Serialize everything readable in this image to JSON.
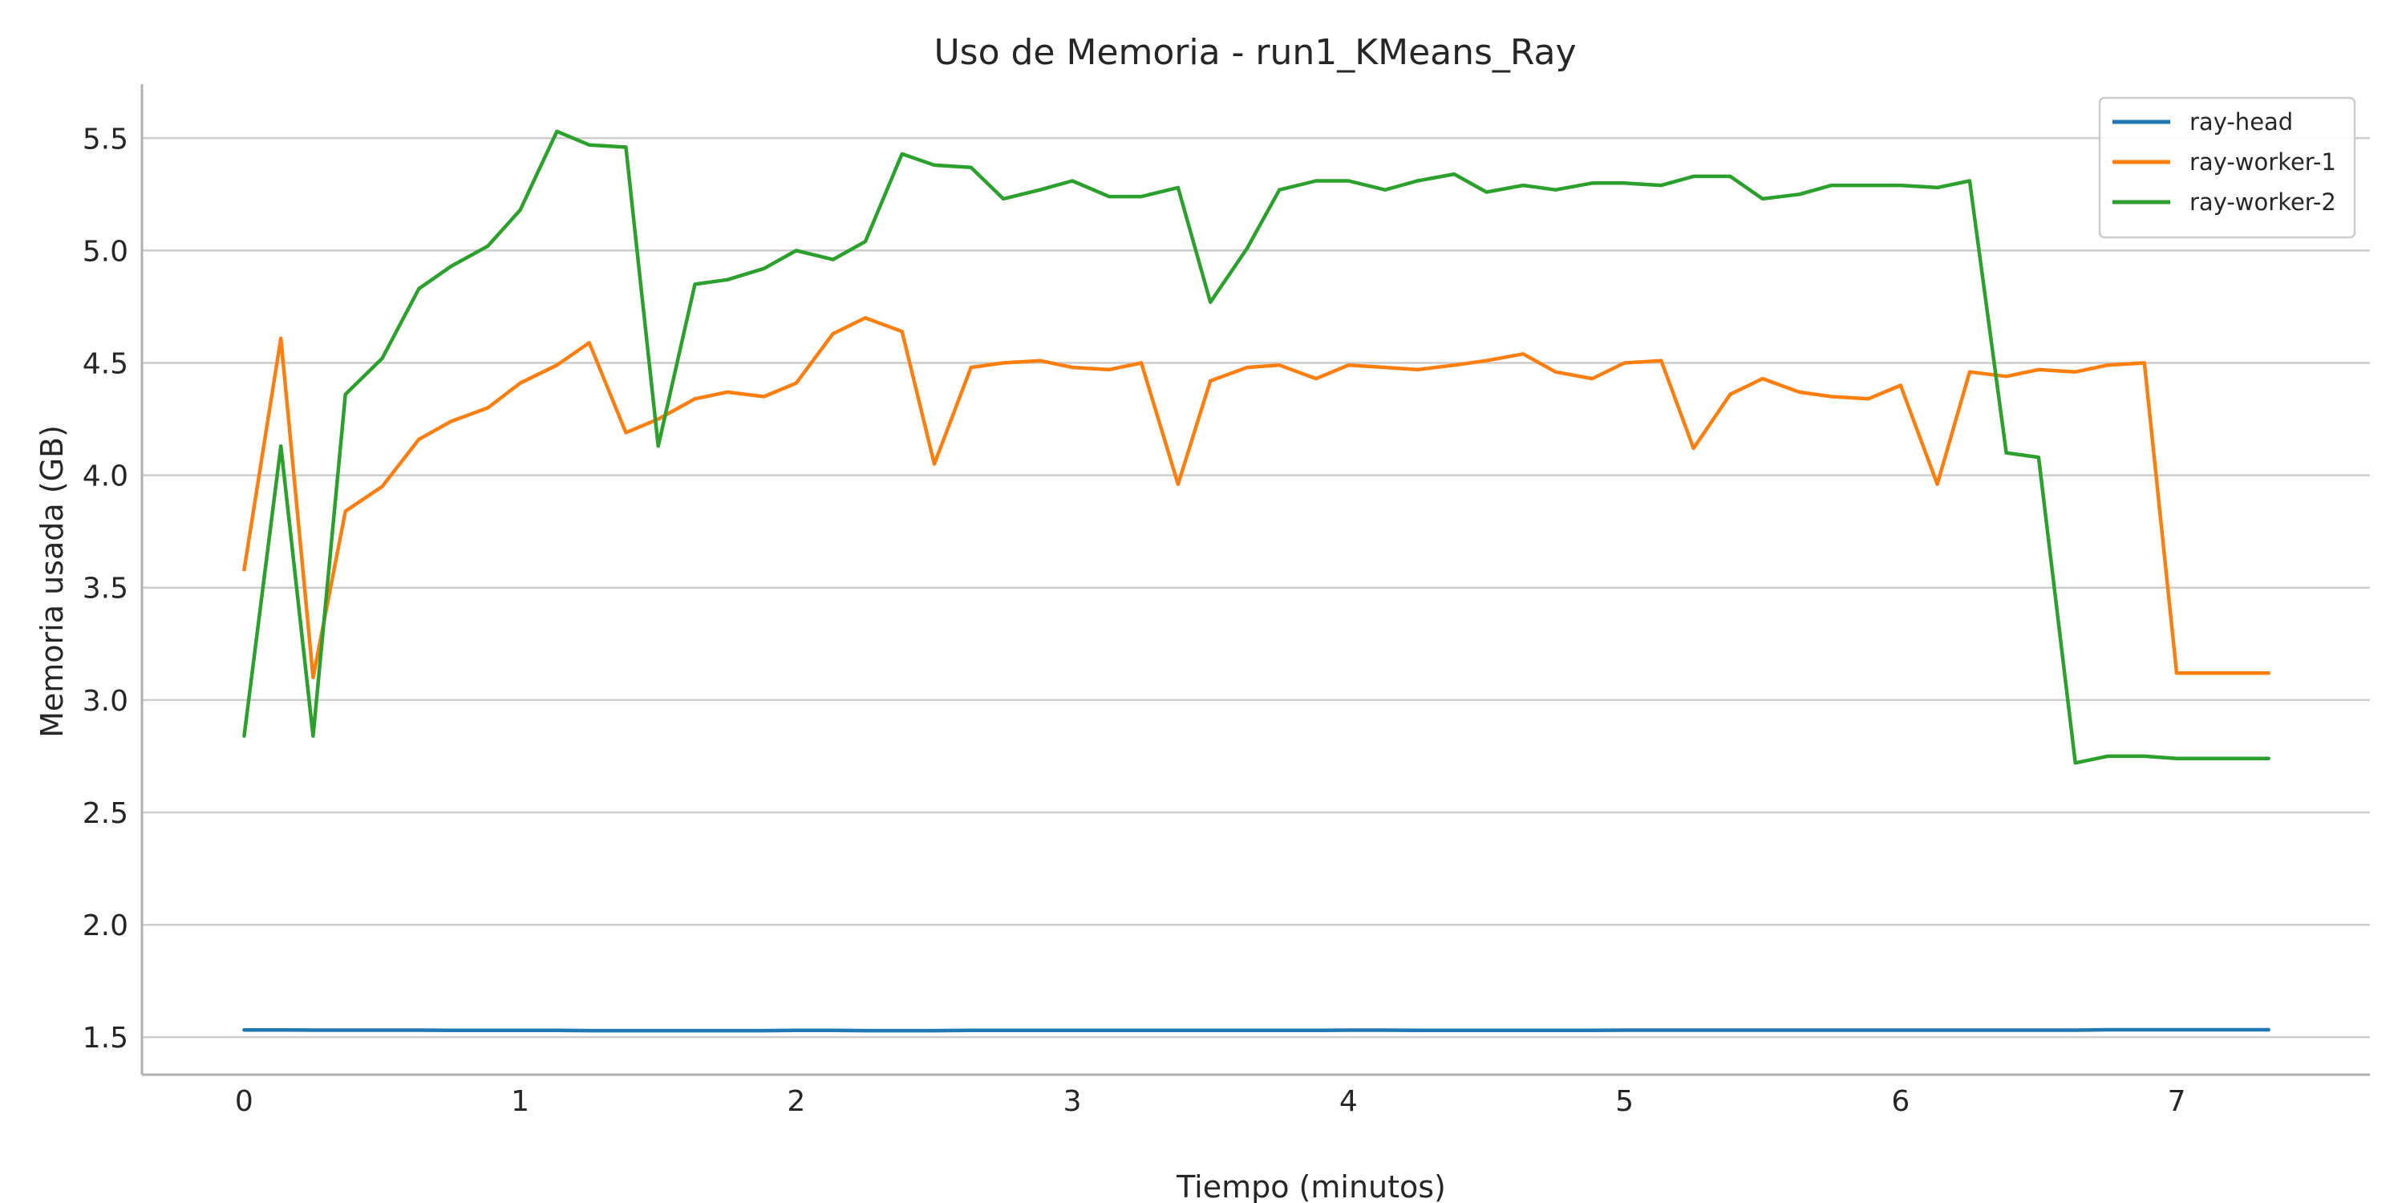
{
  "chart_data": {
    "type": "line",
    "title": "Uso de Memoria - run1_KMeans_Ray",
    "xlabel": "Tiempo (minutos)",
    "ylabel": "Memoria usada (GB)",
    "xlim": [
      -0.37,
      7.7
    ],
    "ylim": [
      1.333,
      5.74
    ],
    "xticks": [
      0,
      1,
      2,
      3,
      4,
      5,
      6,
      7
    ],
    "xtick_labels": [
      "0",
      "1",
      "2",
      "3",
      "4",
      "5",
      "6",
      "7"
    ],
    "yticks": [
      1.5,
      2.0,
      2.5,
      3.0,
      3.5,
      4.0,
      4.5,
      5.0,
      5.5
    ],
    "ytick_labels": [
      "1.5",
      "2.0",
      "2.5",
      "3.0",
      "3.5",
      "4.0",
      "4.5",
      "5.0",
      "5.5"
    ],
    "grid": "horizontal",
    "legend_position": "top-right",
    "x": [
      0,
      0.133,
      0.25,
      0.367,
      0.5,
      0.633,
      0.75,
      0.883,
      1.0,
      1.133,
      1.25,
      1.383,
      1.5,
      1.633,
      1.75,
      1.883,
      2.0,
      2.133,
      2.25,
      2.383,
      2.5,
      2.633,
      2.75,
      2.883,
      3.0,
      3.133,
      3.25,
      3.383,
      3.5,
      3.633,
      3.75,
      3.883,
      4.0,
      4.133,
      4.25,
      4.383,
      4.5,
      4.633,
      4.75,
      4.883,
      5.0,
      5.133,
      5.25,
      5.383,
      5.5,
      5.633,
      5.75,
      5.883,
      6.0,
      6.133,
      6.25,
      6.383,
      6.5,
      6.633,
      6.75,
      6.883,
      7.0,
      7.133,
      7.25,
      7.333
    ],
    "series": [
      {
        "name": "ray-head",
        "color": "#1f77b4",
        "values": [
          1.532,
          1.532,
          1.531,
          1.531,
          1.531,
          1.531,
          1.53,
          1.53,
          1.53,
          1.53,
          1.529,
          1.529,
          1.529,
          1.529,
          1.529,
          1.529,
          1.53,
          1.53,
          1.529,
          1.529,
          1.529,
          1.53,
          1.53,
          1.53,
          1.53,
          1.53,
          1.53,
          1.53,
          1.53,
          1.53,
          1.53,
          1.53,
          1.531,
          1.531,
          1.53,
          1.53,
          1.53,
          1.53,
          1.53,
          1.53,
          1.531,
          1.531,
          1.531,
          1.531,
          1.531,
          1.531,
          1.531,
          1.531,
          1.531,
          1.531,
          1.531,
          1.531,
          1.531,
          1.531,
          1.533,
          1.533,
          1.533,
          1.533,
          1.533,
          1.533
        ]
      },
      {
        "name": "ray-worker-1",
        "color": "#ff7f0e",
        "values": [
          3.58,
          4.61,
          3.1,
          3.84,
          3.95,
          4.16,
          4.24,
          4.3,
          4.41,
          4.49,
          4.59,
          4.19,
          4.25,
          4.34,
          4.37,
          4.35,
          4.41,
          4.63,
          4.7,
          4.64,
          4.05,
          4.48,
          4.5,
          4.51,
          4.48,
          4.47,
          4.5,
          3.96,
          4.42,
          4.48,
          4.49,
          4.43,
          4.49,
          4.48,
          4.47,
          4.49,
          4.51,
          4.54,
          4.46,
          4.43,
          4.5,
          4.51,
          4.12,
          4.36,
          4.43,
          4.37,
          4.35,
          4.34,
          4.4,
          3.96,
          4.46,
          4.44,
          4.47,
          4.46,
          4.49,
          4.5,
          3.12,
          3.12,
          3.12,
          3.12
        ]
      },
      {
        "name": "ray-worker-2",
        "color": "#2ca02c",
        "values": [
          2.84,
          4.13,
          2.84,
          4.36,
          4.52,
          4.83,
          4.93,
          5.02,
          5.18,
          5.53,
          5.47,
          5.46,
          4.13,
          4.85,
          4.87,
          4.92,
          5.0,
          4.96,
          5.04,
          5.43,
          5.38,
          5.37,
          5.23,
          5.27,
          5.31,
          5.24,
          5.24,
          5.28,
          4.77,
          5.01,
          5.27,
          5.31,
          5.31,
          5.27,
          5.31,
          5.34,
          5.26,
          5.29,
          5.27,
          5.3,
          5.3,
          5.29,
          5.33,
          5.33,
          5.23,
          5.25,
          5.29,
          5.29,
          5.29,
          5.28,
          5.31,
          4.1,
          4.08,
          2.72,
          2.75,
          2.75,
          2.74,
          2.74,
          2.74,
          2.74
        ]
      }
    ]
  }
}
